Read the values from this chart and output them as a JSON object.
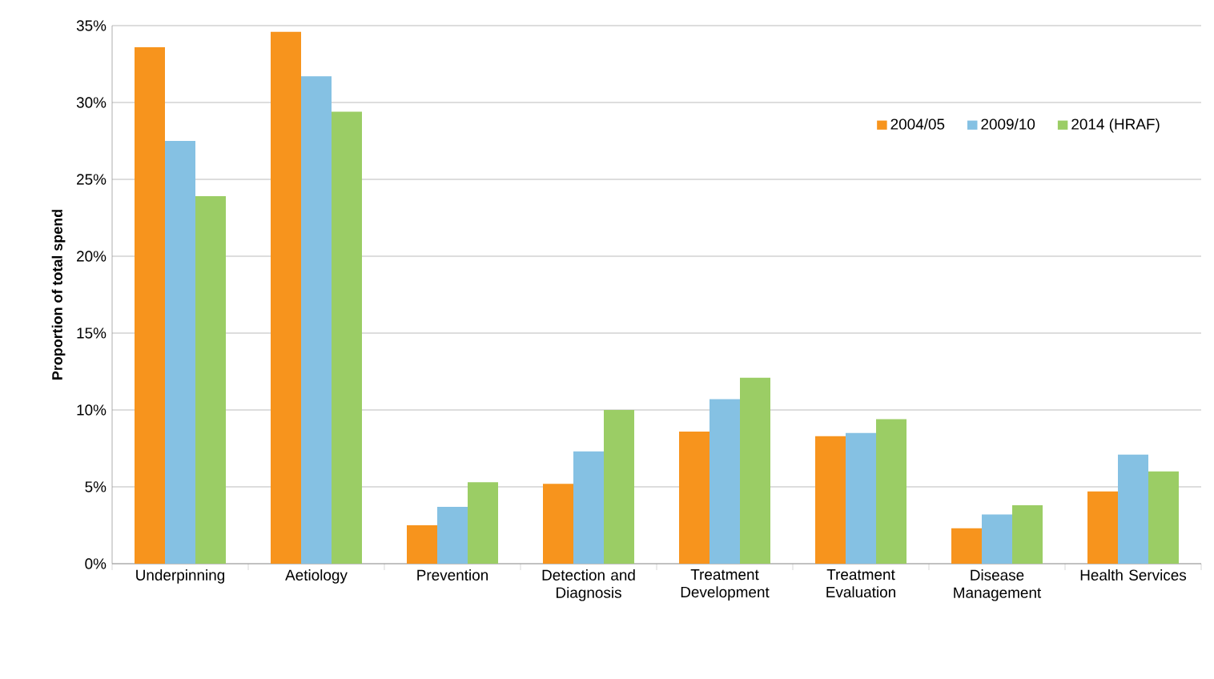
{
  "chart_data": {
    "type": "bar",
    "ylabel": "Proportion of total spend",
    "categories": [
      "Underpinning",
      "Aetiology",
      "Prevention",
      "Detection and Diagnosis",
      "Treatment Development",
      "Treatment Evaluation",
      "Disease Management",
      "Health Services"
    ],
    "series": [
      {
        "name": "2004/05",
        "color": "#f7941d",
        "values": [
          33.6,
          34.6,
          2.5,
          5.2,
          8.6,
          8.3,
          2.3,
          4.7
        ]
      },
      {
        "name": "2009/10",
        "color": "#85c1e3",
        "values": [
          27.5,
          31.7,
          3.7,
          7.3,
          10.7,
          8.5,
          3.2,
          7.1
        ]
      },
      {
        "name": "2014 (HRAF)",
        "color": "#9bcd65",
        "values": [
          23.9,
          29.4,
          5.3,
          10.0,
          12.1,
          9.4,
          3.8,
          6.0
        ]
      }
    ],
    "ylim": [
      0,
      35
    ],
    "yticks": [
      {
        "value": 0,
        "label": "0%"
      },
      {
        "value": 5,
        "label": "5%"
      },
      {
        "value": 10,
        "label": "10%"
      },
      {
        "value": 15,
        "label": "15%"
      },
      {
        "value": 20,
        "label": "20%"
      },
      {
        "value": 25,
        "label": "25%"
      },
      {
        "value": 30,
        "label": "30%"
      },
      {
        "value": 35,
        "label": "35%"
      }
    ],
    "grid": "y",
    "legend": "top right"
  }
}
